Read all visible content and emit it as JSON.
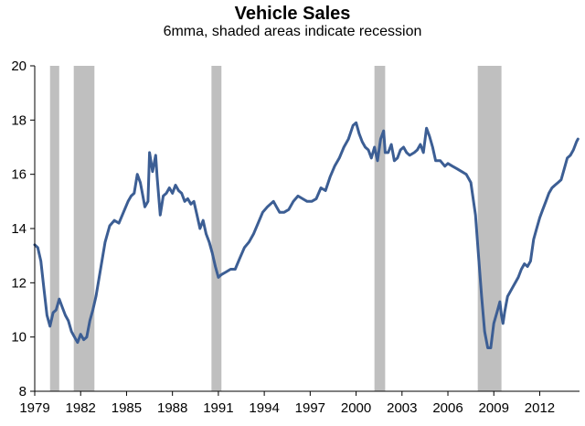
{
  "chart_data": {
    "type": "line",
    "title": "Vehicle Sales",
    "subtitle": "6mma, shaded areas indicate recession",
    "xlabel": "",
    "ylabel": "",
    "xlim": [
      1979.0,
      2014.6
    ],
    "ylim": [
      8,
      20
    ],
    "yticks": [
      8,
      10,
      12,
      14,
      16,
      18,
      20
    ],
    "xticks": [
      1979,
      1982,
      1985,
      1988,
      1991,
      1994,
      1997,
      2000,
      2003,
      2006,
      2009,
      2012
    ],
    "xtick_labels": [
      "1979",
      "1982",
      "1985",
      "1988",
      "1991",
      "1994",
      "1997",
      "2000",
      "2003",
      "2006",
      "2009",
      "2012"
    ],
    "grid": false,
    "colors": {
      "line": "#3C5E94",
      "recession": "#BFBFBF",
      "axis": "#000000"
    },
    "recessions": [
      [
        1980.0,
        1980.6
      ],
      [
        1981.55,
        1982.9
      ],
      [
        1990.55,
        1991.2
      ],
      [
        2001.2,
        2001.9
      ],
      [
        2007.95,
        2009.5
      ]
    ],
    "series": [
      {
        "name": "Vehicle Sales (6mma)",
        "x": [
          1979.0,
          1979.2,
          1979.4,
          1979.6,
          1979.8,
          1980.0,
          1980.2,
          1980.4,
          1980.6,
          1980.8,
          1981.0,
          1981.2,
          1981.4,
          1981.6,
          1981.8,
          1982.0,
          1982.2,
          1982.4,
          1982.6,
          1982.8,
          1983.0,
          1983.3,
          1983.6,
          1983.9,
          1984.2,
          1984.5,
          1984.8,
          1985.1,
          1985.3,
          1985.5,
          1985.7,
          1985.9,
          1986.0,
          1986.2,
          1986.4,
          1986.5,
          1986.7,
          1986.9,
          1987.0,
          1987.2,
          1987.4,
          1987.6,
          1987.8,
          1988.0,
          1988.2,
          1988.4,
          1988.6,
          1988.8,
          1989.0,
          1989.2,
          1989.4,
          1989.6,
          1989.8,
          1990.0,
          1990.2,
          1990.4,
          1990.6,
          1990.8,
          1991.0,
          1991.2,
          1991.5,
          1991.8,
          1992.1,
          1992.4,
          1992.7,
          1993.0,
          1993.3,
          1993.6,
          1993.9,
          1994.2,
          1994.4,
          1994.6,
          1994.8,
          1995.0,
          1995.3,
          1995.6,
          1995.9,
          1996.2,
          1996.5,
          1996.8,
          1997.1,
          1997.4,
          1997.7,
          1998.0,
          1998.3,
          1998.6,
          1998.9,
          1999.2,
          1999.5,
          1999.8,
          2000.0,
          2000.2,
          2000.4,
          2000.6,
          2000.8,
          2001.0,
          2001.2,
          2001.4,
          2001.6,
          2001.8,
          2001.9,
          2002.1,
          2002.3,
          2002.5,
          2002.7,
          2002.9,
          2003.1,
          2003.3,
          2003.5,
          2003.8,
          2004.0,
          2004.2,
          2004.4,
          2004.6,
          2004.8,
          2005.0,
          2005.2,
          2005.5,
          2005.8,
          2006.0,
          2006.3,
          2006.6,
          2006.9,
          2007.2,
          2007.5,
          2007.8,
          2008.0,
          2008.2,
          2008.4,
          2008.6,
          2008.8,
          2009.0,
          2009.2,
          2009.4,
          2009.5,
          2009.6,
          2009.7,
          2009.8,
          2009.9,
          2010.0,
          2010.2,
          2010.4,
          2010.6,
          2010.8,
          2011.0,
          2011.2,
          2011.4,
          2011.6,
          2011.8,
          2012.0,
          2012.2,
          2012.4,
          2012.6,
          2012.8,
          2013.0,
          2013.2,
          2013.4,
          2013.6,
          2013.8,
          2014.0,
          2014.2,
          2014.4,
          2014.5
        ],
        "y": [
          13.4,
          13.3,
          12.8,
          11.8,
          10.8,
          10.4,
          10.9,
          11.0,
          11.4,
          11.1,
          10.8,
          10.6,
          10.2,
          10.0,
          9.8,
          10.1,
          9.9,
          10.0,
          10.6,
          11.0,
          11.5,
          12.5,
          13.5,
          14.1,
          14.3,
          14.2,
          14.6,
          15.0,
          15.2,
          15.3,
          16.0,
          15.7,
          15.4,
          14.8,
          15.0,
          16.8,
          16.1,
          16.7,
          15.9,
          14.5,
          15.2,
          15.3,
          15.5,
          15.3,
          15.6,
          15.4,
          15.3,
          15.0,
          15.1,
          14.9,
          15.0,
          14.5,
          14.0,
          14.3,
          13.8,
          13.5,
          13.1,
          12.6,
          12.2,
          12.3,
          12.4,
          12.5,
          12.5,
          12.9,
          13.3,
          13.5,
          13.8,
          14.2,
          14.6,
          14.8,
          14.9,
          15.0,
          14.8,
          14.6,
          14.6,
          14.7,
          15.0,
          15.2,
          15.1,
          15.0,
          15.0,
          15.1,
          15.5,
          15.4,
          15.9,
          16.3,
          16.6,
          17.0,
          17.3,
          17.8,
          17.9,
          17.5,
          17.2,
          17.0,
          16.9,
          16.6,
          17.0,
          16.5,
          17.3,
          17.6,
          16.8,
          16.8,
          17.1,
          16.5,
          16.6,
          16.9,
          17.0,
          16.8,
          16.7,
          16.8,
          16.9,
          17.1,
          16.8,
          17.7,
          17.4,
          17.0,
          16.5,
          16.5,
          16.3,
          16.4,
          16.3,
          16.2,
          16.1,
          16.0,
          15.7,
          14.5,
          13.0,
          11.5,
          10.2,
          9.6,
          9.6,
          10.5,
          10.9,
          11.3,
          10.8,
          10.5,
          10.9,
          11.2,
          11.5,
          11.6,
          11.8,
          12.0,
          12.2,
          12.5,
          12.7,
          12.6,
          12.8,
          13.6,
          14.0,
          14.4,
          14.7,
          15.0,
          15.3,
          15.5,
          15.6,
          15.7,
          15.8,
          16.2,
          16.6,
          16.7,
          16.9,
          17.2,
          17.3
        ]
      }
    ]
  }
}
